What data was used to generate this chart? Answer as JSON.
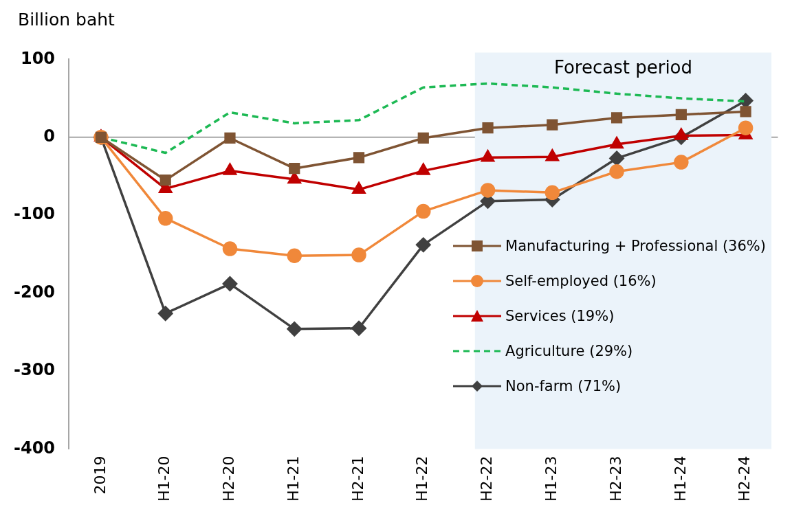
{
  "chart_data": {
    "type": "line",
    "ylabel": "Billion baht",
    "categories": [
      "2019",
      "H1-20",
      "H2-20",
      "H1-21",
      "H2-21",
      "H1-22",
      "H2-22",
      "H1-23",
      "H2-23",
      "H1-24",
      "H2-24"
    ],
    "series": [
      {
        "name": "Manufacturing + Professional (36%)",
        "color": "#7f5433",
        "marker": "square",
        "values": [
          0,
          -55,
          -1,
          -40,
          -26,
          -1,
          12,
          16,
          25,
          29,
          33
        ]
      },
      {
        "name": "Self-employed (16%)",
        "color": "#f0883a",
        "marker": "circle",
        "values": [
          0,
          -104,
          -143,
          -152,
          -151,
          -95,
          -68,
          -71,
          -44,
          -32,
          12
        ]
      },
      {
        "name": "Services (19%)",
        "color": "#c00000",
        "marker": "triangle",
        "values": [
          0,
          -66,
          -43,
          -54,
          -67,
          -43,
          -26,
          -25,
          -9,
          2,
          3
        ]
      },
      {
        "name": "Agriculture (29%)",
        "color": "#1db954",
        "marker": "none",
        "line_style": "dashed",
        "values": [
          0,
          -20,
          32,
          18,
          22,
          64,
          69,
          64,
          56,
          50,
          46
        ]
      },
      {
        "name": "Non-farm (71%)",
        "color": "#404040",
        "marker": "diamond",
        "values": [
          0,
          -226,
          -188,
          -246,
          -245,
          -138,
          -82,
          -80,
          -27,
          0,
          47
        ]
      }
    ],
    "ylim": [
      -400,
      100
    ],
    "yticks": [
      -400,
      -300,
      -200,
      -100,
      0,
      100
    ],
    "bands": [
      {
        "axis": "x",
        "from": "H2-22",
        "to": "H2-24",
        "label": "Forecast period",
        "color": "#ebf3fa"
      }
    ],
    "ref_lines": [
      {
        "axis": "y",
        "value": 0,
        "color": "#a6a6a6"
      }
    ],
    "grid": false,
    "legend": "bottom right"
  }
}
